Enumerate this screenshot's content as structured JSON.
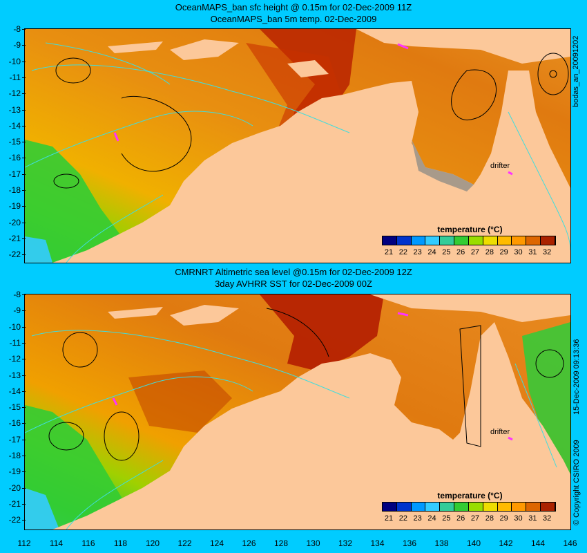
{
  "top": {
    "title_line1": "OceanMAPS_ban sfc height @ 0.15m for 02-Dec-2009 11Z",
    "title_line2": "OceanMAPS_ban 5m temp. 02-Dec-2009",
    "side_label": "bodas_an_20091202",
    "drifter_label": "drifter"
  },
  "bottom": {
    "title_line1": "CMRNRT Altimetric sea level  @0.15m  for 02-Dec-2009 12Z",
    "title_line2": "3day AVHRR SST for 02-Dec-2009 00Z",
    "side_label_date": "15-Dec-2009 09:13:36",
    "side_label_copyright": "© Copyright CSIRO 2009",
    "drifter_label": "drifter"
  },
  "legend": {
    "title": "temperature (°C)",
    "ticks": [
      "21",
      "22",
      "23",
      "24",
      "25",
      "26",
      "27",
      "28",
      "29",
      "30",
      "31",
      "32"
    ],
    "colors": [
      "#000080",
      "#0033cc",
      "#0099ff",
      "#33ccff",
      "#33cc99",
      "#33cc33",
      "#99dd00",
      "#eedd00",
      "#ffbb00",
      "#ff9900",
      "#dd6600",
      "#aa2200"
    ]
  },
  "axes": {
    "lat_ticks": [
      "-8",
      "-9",
      "-10",
      "-11",
      "-12",
      "-13",
      "-14",
      "-15",
      "-16",
      "-17",
      "-18",
      "-19",
      "-20",
      "-21",
      "-22"
    ],
    "lon_ticks": [
      "112",
      "114",
      "116",
      "118",
      "120",
      "122",
      "124",
      "126",
      "128",
      "130",
      "132",
      "134",
      "136",
      "138",
      "140",
      "142",
      "144",
      "146"
    ]
  },
  "colors": {
    "background": "#00ccff",
    "land": "#fcc89a",
    "ocean_warm": "#e07a10",
    "ocean_hot": "#b02000",
    "ocean_cool": "#33cc33",
    "contour_cyan": "#33dddd",
    "drifter": "#ff33ff"
  }
}
